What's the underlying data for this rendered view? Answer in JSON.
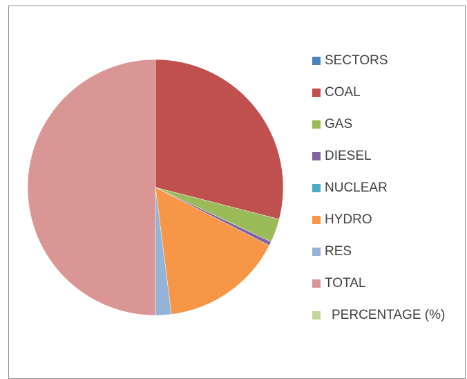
{
  "chart_data": {
    "type": "pie",
    "categories": [
      "SECTORS",
      "COAL",
      "GAS",
      "DIESEL",
      "NUCLEAR",
      "HYDRO",
      "RES",
      "TOTAL",
      "PERCENTAGE (%)"
    ],
    "values": [
      0,
      29,
      3,
      0.5,
      0,
      15.5,
      2,
      50,
      0
    ],
    "colors": [
      "#4f81bd",
      "#c0504d",
      "#9bbb59",
      "#8064a2",
      "#4bacc6",
      "#f79646",
      "#95b3d7",
      "#d99694",
      "#c3d69b"
    ],
    "title": "",
    "legend_position": "right"
  }
}
